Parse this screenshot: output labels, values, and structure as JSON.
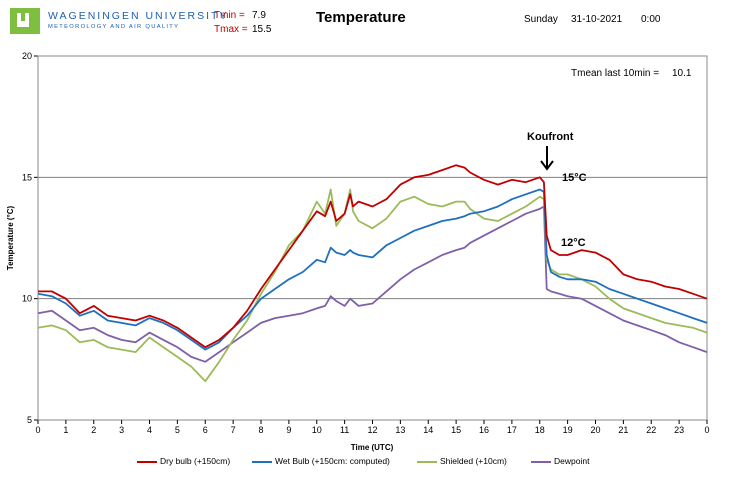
{
  "header": {
    "org_name": "WAGENINGEN UNIVERSITY",
    "org_sub": "METEOROLOGY AND AIR QUALITY",
    "tmin_label": "Tmin =",
    "tmin_value": "7.9",
    "tmax_label": "Tmax =",
    "tmax_value": "15.5",
    "title": "Temperature",
    "day": "Sunday",
    "date": "31-10-2021",
    "time": "0:00",
    "tmean_label": "Tmean  last 10min =",
    "tmean_value": "10.1"
  },
  "annotations": {
    "front": "Koufront",
    "t_before": "15°C",
    "t_after": "12°C"
  },
  "colors": {
    "dry_bulb": "#c00000",
    "wet_bulb": "#1f6fbf",
    "shielded": "#9bbb59",
    "dewpoint": "#7f5fa8",
    "grid": "#808080",
    "logo": "#7fbf3f",
    "org_text": "#1a5fb4"
  },
  "chart_data": {
    "type": "line",
    "title": "Temperature",
    "xlabel": "Time (UTC)",
    "ylabel": "Temperature (°C)",
    "xlim": [
      0,
      24
    ],
    "ylim": [
      5,
      20
    ],
    "x_ticks": [
      "0",
      "1",
      "2",
      "3",
      "4",
      "5",
      "6",
      "7",
      "8",
      "9",
      "10",
      "11",
      "12",
      "13",
      "14",
      "15",
      "16",
      "17",
      "18",
      "19",
      "20",
      "21",
      "22",
      "23",
      "0"
    ],
    "y_ticks": [
      "5",
      "10",
      "15",
      "20"
    ],
    "grid": "horizontal",
    "legend_position": "bottom",
    "x": [
      0,
      0.5,
      1,
      1.5,
      2,
      2.5,
      3,
      3.5,
      4,
      4.5,
      5,
      5.5,
      6,
      6.5,
      7,
      7.5,
      8,
      8.5,
      9,
      9.5,
      10,
      10.3,
      10.5,
      10.7,
      11,
      11.2,
      11.3,
      11.5,
      12,
      12.5,
      13,
      13.5,
      14,
      14.5,
      15,
      15.3,
      15.5,
      16,
      16.5,
      17,
      17.5,
      18,
      18.15,
      18.25,
      18.4,
      18.7,
      19,
      19.5,
      20,
      20.5,
      21,
      21.5,
      22,
      22.5,
      23,
      23.5,
      24
    ],
    "series": [
      {
        "name": "Dry bulb (+150cm)",
        "values": [
          10.3,
          10.3,
          10.0,
          9.4,
          9.7,
          9.3,
          9.2,
          9.1,
          9.3,
          9.1,
          8.8,
          8.4,
          8.0,
          8.3,
          8.8,
          9.5,
          10.4,
          11.2,
          12.0,
          12.8,
          13.6,
          13.4,
          14.0,
          13.2,
          13.5,
          14.3,
          13.8,
          14.0,
          13.8,
          14.1,
          14.7,
          15.0,
          15.1,
          15.3,
          15.5,
          15.4,
          15.2,
          14.9,
          14.7,
          14.9,
          14.8,
          15.0,
          14.8,
          12.6,
          12.0,
          11.8,
          11.8,
          12.0,
          11.9,
          11.6,
          11.0,
          10.8,
          10.7,
          10.5,
          10.4,
          10.2,
          10.0
        ]
      },
      {
        "name": "Wet Bulb (+150cm: computed)",
        "values": [
          10.2,
          10.1,
          9.8,
          9.3,
          9.5,
          9.1,
          9.0,
          8.9,
          9.2,
          9.0,
          8.7,
          8.3,
          7.9,
          8.2,
          8.8,
          9.3,
          10.0,
          10.4,
          10.8,
          11.1,
          11.6,
          11.5,
          12.1,
          11.9,
          11.8,
          12.0,
          11.9,
          11.8,
          11.7,
          12.2,
          12.5,
          12.8,
          13.0,
          13.2,
          13.3,
          13.4,
          13.5,
          13.6,
          13.8,
          14.1,
          14.3,
          14.5,
          14.4,
          11.8,
          11.1,
          10.9,
          10.8,
          10.8,
          10.7,
          10.4,
          10.2,
          10.0,
          9.8,
          9.6,
          9.4,
          9.2,
          9.0
        ]
      },
      {
        "name": "Shielded (+10cm)",
        "values": [
          8.8,
          8.9,
          8.7,
          8.2,
          8.3,
          8.0,
          7.9,
          7.8,
          8.4,
          8.0,
          7.6,
          7.2,
          6.6,
          7.4,
          8.3,
          9.1,
          10.2,
          11.1,
          12.2,
          12.8,
          14.0,
          13.5,
          14.5,
          13.0,
          13.5,
          14.5,
          13.6,
          13.2,
          12.9,
          13.3,
          14.0,
          14.2,
          13.9,
          13.8,
          14.0,
          14.0,
          13.7,
          13.3,
          13.2,
          13.5,
          13.8,
          14.2,
          14.1,
          11.6,
          11.2,
          11.0,
          11.0,
          10.8,
          10.5,
          10.0,
          9.6,
          9.4,
          9.2,
          9.0,
          8.9,
          8.8,
          8.6
        ]
      },
      {
        "name": "Dewpoint",
        "values": [
          9.4,
          9.5,
          9.1,
          8.7,
          8.8,
          8.5,
          8.3,
          8.2,
          8.6,
          8.3,
          8.0,
          7.6,
          7.4,
          7.8,
          8.2,
          8.6,
          9.0,
          9.2,
          9.3,
          9.4,
          9.6,
          9.7,
          10.1,
          9.9,
          9.7,
          10.0,
          9.9,
          9.7,
          9.8,
          10.3,
          10.8,
          11.2,
          11.5,
          11.8,
          12.0,
          12.1,
          12.3,
          12.6,
          12.9,
          13.2,
          13.5,
          13.7,
          13.8,
          10.4,
          10.3,
          10.2,
          10.1,
          10.0,
          9.7,
          9.4,
          9.1,
          8.9,
          8.7,
          8.5,
          8.2,
          8.0,
          7.8
        ]
      }
    ]
  }
}
